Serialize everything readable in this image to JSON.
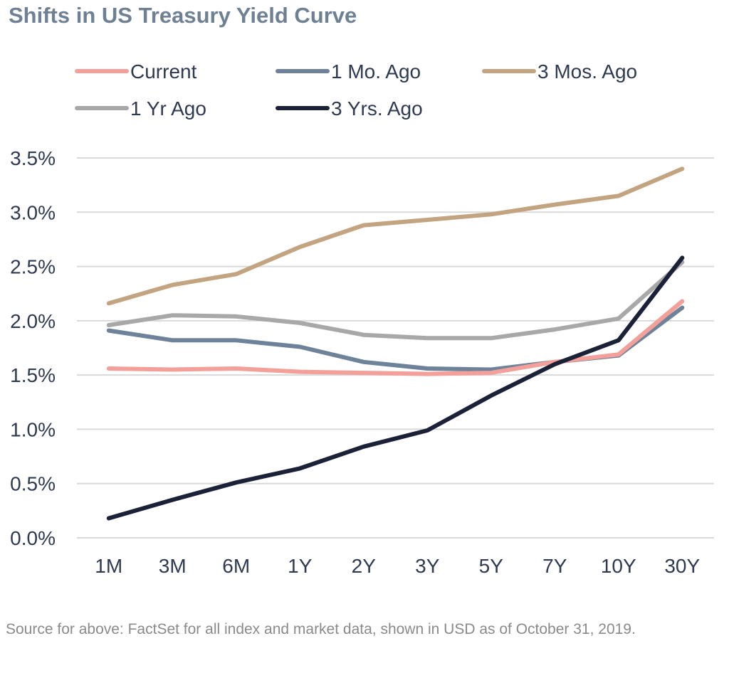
{
  "header": {
    "title": "Shifts in US Treasury Yield Curve"
  },
  "footer": {
    "source": "Source for above: FactSet for all index and market data, shown in USD as of October 31, 2019."
  },
  "chart_data": {
    "type": "line",
    "title": "Shifts in US Treasury Yield Curve",
    "xlabel": "",
    "ylabel": "",
    "categories": [
      "1M",
      "3M",
      "6M",
      "1Y",
      "2Y",
      "3Y",
      "5Y",
      "7Y",
      "10Y",
      "30Y"
    ],
    "ylim": [
      0,
      3.5
    ],
    "yticks": [
      0,
      0.5,
      1.0,
      1.5,
      2.0,
      2.5,
      3.0,
      3.5
    ],
    "ytick_labels": [
      "0.0%",
      "0.5%",
      "1.0%",
      "1.5%",
      "2.0%",
      "2.5%",
      "3.0%",
      "3.5%"
    ],
    "grid": "horizontal",
    "legend_position": "top",
    "series": [
      {
        "name": "Current",
        "color": "#F4A09A",
        "values": [
          1.56,
          1.55,
          1.56,
          1.53,
          1.52,
          1.51,
          1.52,
          1.62,
          1.69,
          2.18
        ]
      },
      {
        "name": "1 Mo. Ago",
        "color": "#6E8399",
        "values": [
          1.91,
          1.82,
          1.82,
          1.76,
          1.62,
          1.56,
          1.55,
          1.62,
          1.68,
          2.12
        ]
      },
      {
        "name": "3 Mos. Ago",
        "color": "#C3A480",
        "values": [
          2.16,
          2.33,
          2.43,
          2.68,
          2.88,
          2.93,
          2.98,
          3.07,
          3.15,
          3.4
        ]
      },
      {
        "name": "1 Yr Ago",
        "color": "#A8A8A8",
        "values": [
          1.96,
          2.05,
          2.04,
          1.98,
          1.87,
          1.84,
          1.84,
          1.92,
          2.02,
          2.54
        ]
      },
      {
        "name": "3 Yrs. Ago",
        "color": "#1B2238",
        "values": [
          0.18,
          0.35,
          0.51,
          0.64,
          0.84,
          0.99,
          1.31,
          1.6,
          1.82,
          2.58
        ]
      }
    ]
  }
}
